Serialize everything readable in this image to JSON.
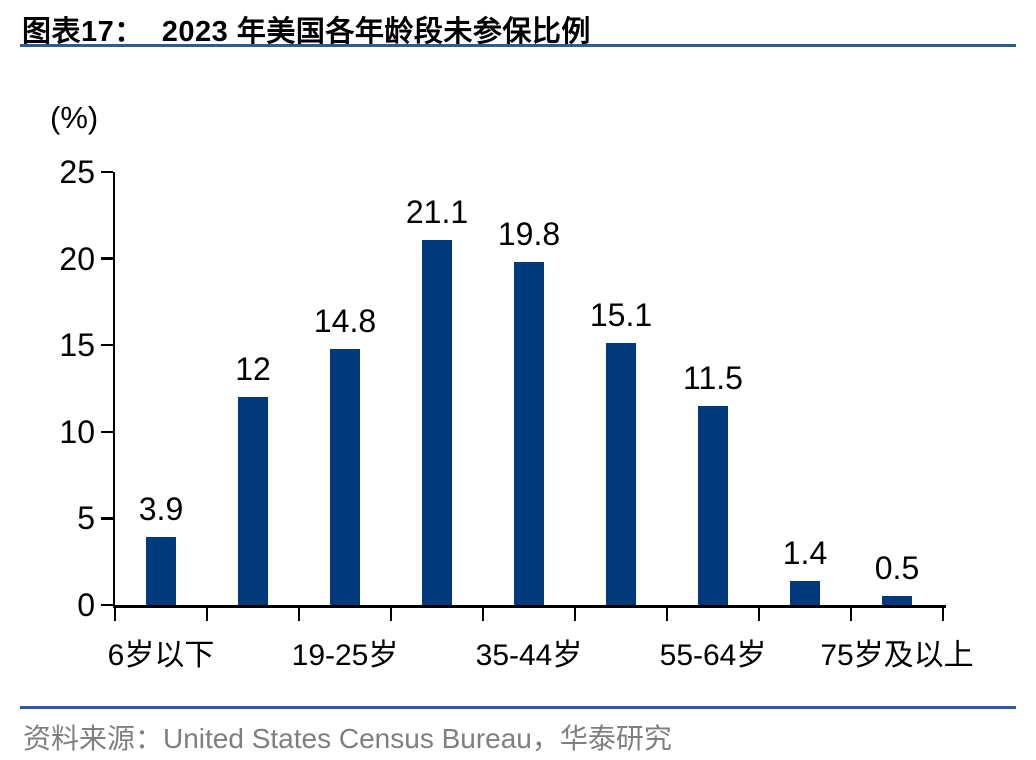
{
  "header": {
    "figure_label": "图表17：",
    "figure_title": "2023 年美国各年龄段未参保比例"
  },
  "chart_data": {
    "type": "bar",
    "title": "2023 年美国各年龄段未参保比例",
    "unit_label": "(%)",
    "xlabel": "",
    "ylabel": "(%)",
    "categories": [
      "6岁以下",
      "",
      "19-25岁",
      "",
      "35-44岁",
      "",
      "55-64岁",
      "",
      "75岁及以上"
    ],
    "values": [
      3.9,
      12,
      14.8,
      21.1,
      19.8,
      15.1,
      11.5,
      1.4,
      0.5
    ],
    "value_labels": [
      "3.9",
      "12",
      "14.8",
      "21.1",
      "19.8",
      "15.1",
      "11.5",
      "1.4",
      "0.5"
    ],
    "ylim": [
      0,
      25
    ],
    "yticks": [
      0,
      5,
      10,
      15,
      20,
      25
    ],
    "grid": false,
    "legend": "none",
    "bar_color": "#003A7C"
  },
  "footer": {
    "source_text": "资料来源：United States Census Bureau，华泰研究"
  },
  "colors": {
    "accent_line": "#2E5B97",
    "bar": "#003A7C",
    "axis": "#000000",
    "footer_text": "#7F7F7F"
  }
}
